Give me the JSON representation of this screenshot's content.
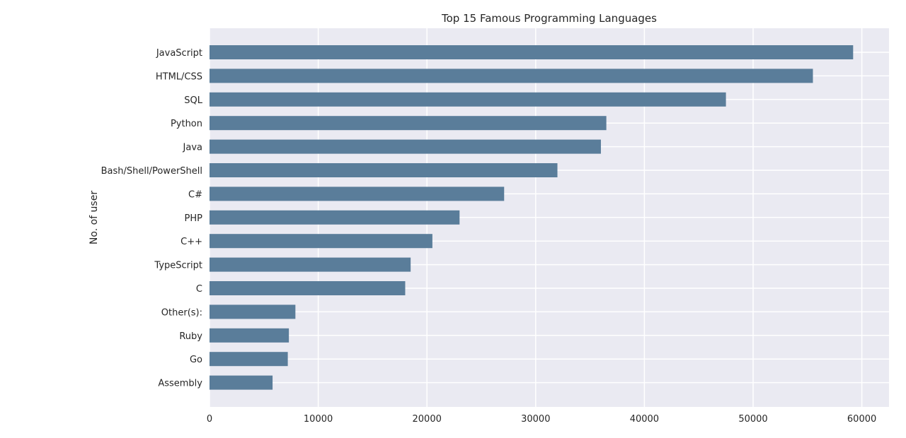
{
  "chart_data": {
    "type": "bar",
    "orientation": "horizontal",
    "title": "Top 15 Famous Programming Languages",
    "xlabel": "",
    "ylabel": "No. of user",
    "categories": [
      "JavaScript",
      "HTML/CSS",
      "SQL",
      "Python",
      "Java",
      "Bash/Shell/PowerShell",
      "C#",
      "PHP",
      "C++",
      "TypeScript",
      "C",
      "Other(s):",
      "Ruby",
      "Go",
      "Assembly"
    ],
    "values": [
      59200,
      55500,
      47500,
      36500,
      36000,
      32000,
      27100,
      23000,
      20500,
      18500,
      18000,
      7900,
      7300,
      7200,
      5800
    ],
    "xlim": [
      0,
      62500
    ],
    "xticks": [
      0,
      10000,
      20000,
      30000,
      40000,
      50000,
      60000
    ],
    "xtick_labels": [
      "0",
      "10000",
      "20000",
      "30000",
      "40000",
      "50000",
      "60000"
    ],
    "grid": true,
    "colors": {
      "bar": "#5a7d9a",
      "plot_bg": "#eaeaf2",
      "grid": "#ffffff"
    }
  }
}
